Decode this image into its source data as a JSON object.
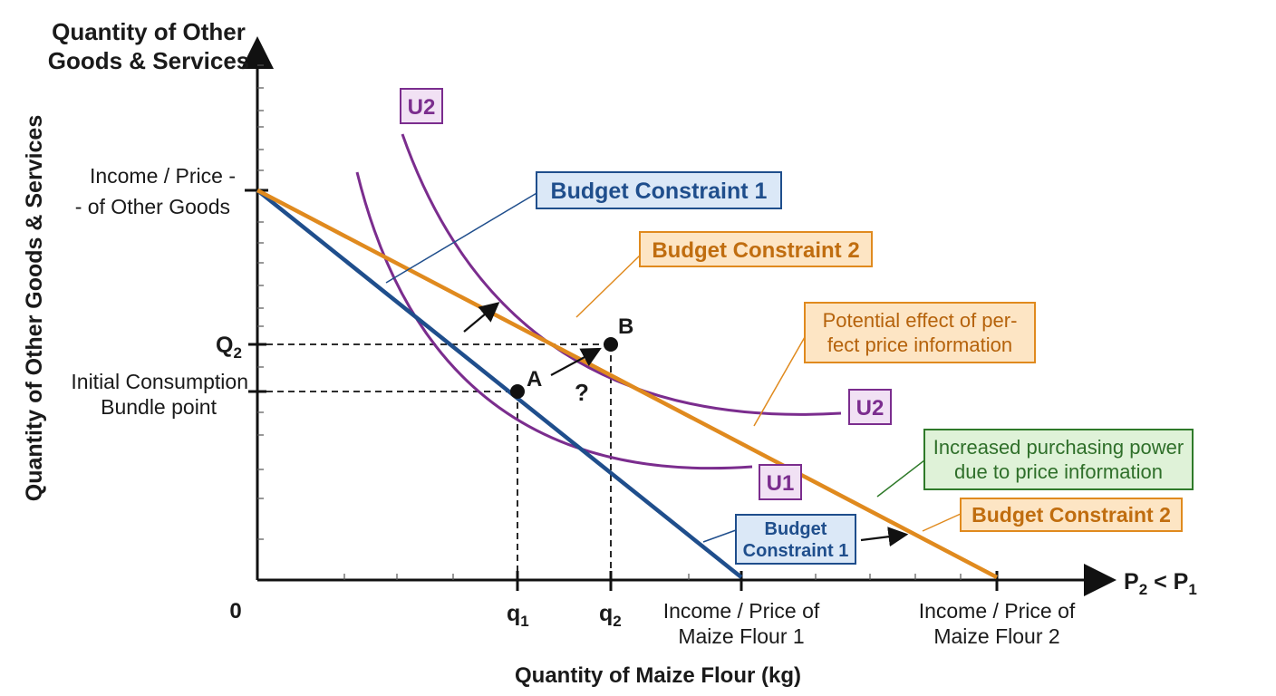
{
  "axes": {
    "y_title_top_line1": "Quantity of Other",
    "y_title_top_line2": "Goods & Services",
    "y_title_rotated": "Quantity of Other Goods & Services",
    "x_title": "Quantity of Maize Flour (kg)",
    "origin": "0",
    "x_end_label_main": "P",
    "x_end_sub1": "2",
    "x_end_mid": " < P",
    "x_end_sub2": "1"
  },
  "y_labels": {
    "intercept_line1": "Income / Price -",
    "intercept_line2": "- of Other Goods",
    "q2_main": "Q",
    "q2_sub": "2",
    "initial_line1": "Initial Consumption",
    "initial_line2": "Bundle point"
  },
  "x_labels": {
    "q1_main": "q",
    "q1_sub": "1",
    "q2_main": "q",
    "q2_sub": "2",
    "income1_line1": "Income / Price of",
    "income1_line2": "Maize Flour 1",
    "income2_line1": "Income / Price of",
    "income2_line2": "Maize Flour 2"
  },
  "points": {
    "a": "A",
    "b": "B",
    "question": "?"
  },
  "curve_labels": {
    "u2_top": "U2",
    "u2_right": "U2",
    "u1": "U1"
  },
  "callouts": {
    "bc1_top": "Budget Constraint 1",
    "bc2_top": "Budget Constraint 2",
    "potential_line1": "Potential effect of per-",
    "potential_line2": "fect price information",
    "increased_line1": "Increased purchasing power",
    "increased_line2": "due to price information",
    "bc2_right": "Budget Constraint 2",
    "bc1_bottom_line1": "Budget",
    "bc1_bottom_line2": "Constraint 1"
  },
  "colors": {
    "budget_constraint_1": "#1f4e8c",
    "budget_constraint_2": "#e08a1e",
    "indifference_curves": "#7b2d8e",
    "callout_blue_bg": "#dbe8f7",
    "callout_orange_bg": "#fde5c4",
    "callout_green_bg": "#dff2d8",
    "callout_purple_bg": "#f1e1f4"
  }
}
